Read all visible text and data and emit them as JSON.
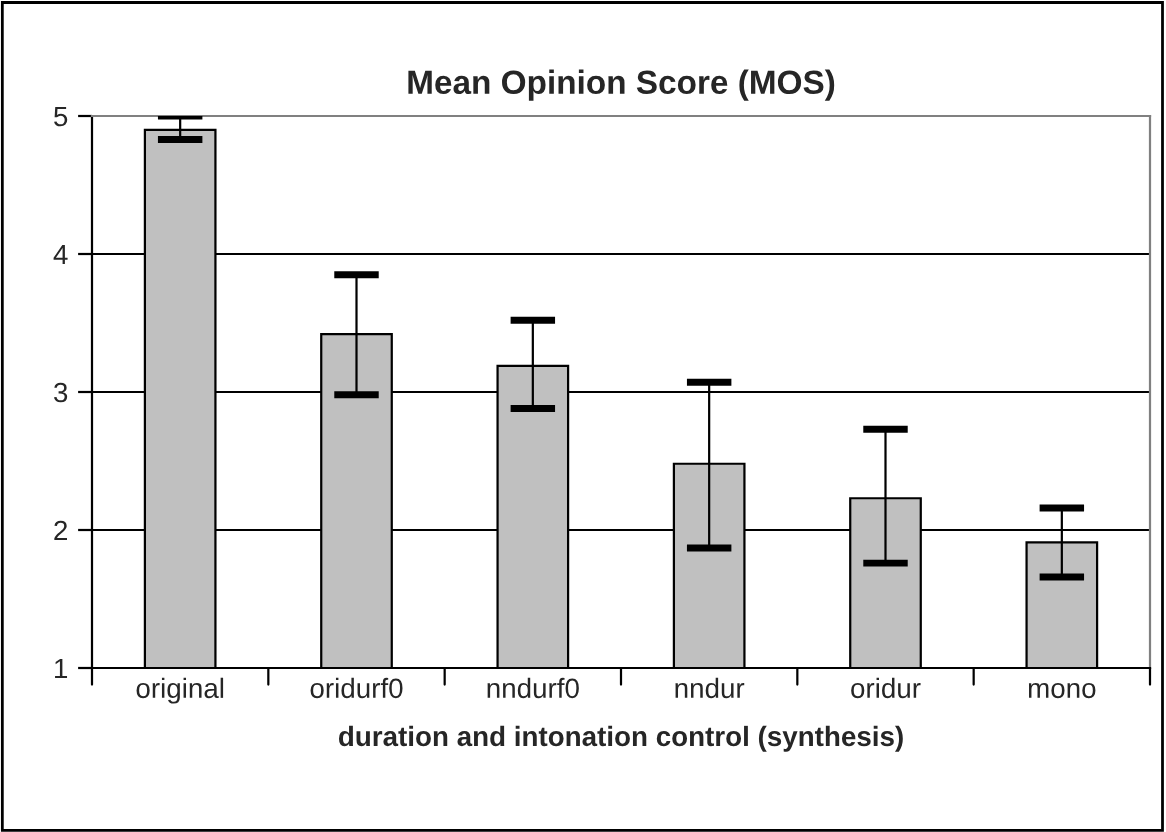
{
  "chart_data": {
    "type": "bar",
    "title": "Mean Opinion Score (MOS)",
    "xlabel": "duration and intonation control (synthesis)",
    "categories": [
      "original",
      "oridurf0",
      "nndurf0",
      "nndur",
      "oridur",
      "mono"
    ],
    "values": [
      4.9,
      3.42,
      3.19,
      2.48,
      2.23,
      1.91
    ],
    "errors": [
      [
        4.83,
        5.0
      ],
      [
        2.98,
        3.85
      ],
      [
        2.88,
        3.52
      ],
      [
        1.87,
        3.07
      ],
      [
        1.76,
        2.73
      ],
      [
        1.66,
        2.16
      ]
    ],
    "color": "#c0c0c0",
    "ylim": [
      1,
      5
    ],
    "yticks": [
      1,
      2,
      3,
      4,
      5
    ],
    "grid": "y"
  }
}
